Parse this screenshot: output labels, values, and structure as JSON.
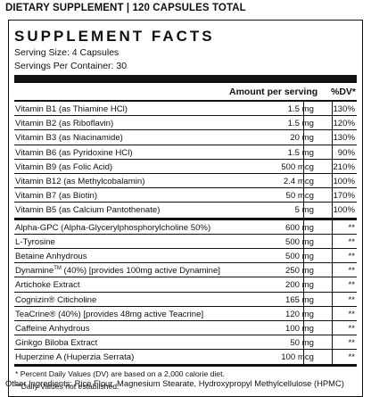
{
  "header": "DIETARY SUPPLEMENT | 120 CAPSULES TOTAL",
  "title": "SUPPLEMENT FACTS",
  "serving_size": "Serving Size: 4 Capsules",
  "servings_per_container": "Servings Per Container: 30",
  "columns": {
    "amount": "Amount per serving",
    "dv": "%DV*"
  },
  "vitamins": [
    {
      "name": "Vitamin B1 (as Thiamine HCl)",
      "amount": "1.5 mg",
      "dv": "130%"
    },
    {
      "name": "Vitamin B2 (as Riboflavin)",
      "amount": "1.5 mg",
      "dv": "120%"
    },
    {
      "name": "Vitamin B3 (as Niacinamide)",
      "amount": "20 mg",
      "dv": "130%"
    },
    {
      "name": "Vitamin B6 (as Pyridoxine HCl)",
      "amount": "1.5 mg",
      "dv": "90%"
    },
    {
      "name": "Vitamin B9 (as Folic Acid)",
      "amount": "500 mcg",
      "dv": "210%"
    },
    {
      "name": "Vitamin B12 (as Methylcobalamin)",
      "amount": "2.4 mcg",
      "dv": "100%"
    },
    {
      "name": "Vitamin B7 (as Biotin)",
      "amount": "50 mcg",
      "dv": "170%"
    },
    {
      "name": "Vitamin B5 (as Calcium Pantothenate)",
      "amount": "5 mg",
      "dv": "100%"
    }
  ],
  "ingredients": [
    {
      "name": "Alpha-GPC (Alpha-Glycerylphosphorylcholine 50%)",
      "amount": "600 mg",
      "dv": "**"
    },
    {
      "name": "L-Tyrosine",
      "amount": "500 mg",
      "dv": "**"
    },
    {
      "name": "Betaine Anhydrous",
      "amount": "500 mg",
      "dv": "**"
    },
    {
      "name_pre": "Dynamine",
      "sup": "TM",
      "name_post": " (40%) [provides 100mg active Dynamine]",
      "amount": "250 mg",
      "dv": "**"
    },
    {
      "name": "Artichoke Extract",
      "amount": "200 mg",
      "dv": "**"
    },
    {
      "name": "Cognizin® Citicholine",
      "amount": "165 mg",
      "dv": "**"
    },
    {
      "name": "TeaCrine® (40%) [provides 48mg active Teacrine]",
      "amount": "120 mg",
      "dv": "**"
    },
    {
      "name": "Caffeine Anhydrous",
      "amount": "100 mg",
      "dv": "**"
    },
    {
      "name": "Ginkgo Biloba Extract",
      "amount": "50 mg",
      "dv": "**"
    },
    {
      "name": "Huperzine A (Huperzia Serrata)",
      "amount": "100 mcg",
      "dv": "**"
    }
  ],
  "footnotes": [
    "* Percent Daily Values (DV) are based on a 2,000 calorie diet.",
    "**Daily Values not established."
  ],
  "other_ingredients": "Other Ingredients: Rice Flour, Magnesium Stearate, Hydroxypropyl Methylcellulose (HPMC)"
}
